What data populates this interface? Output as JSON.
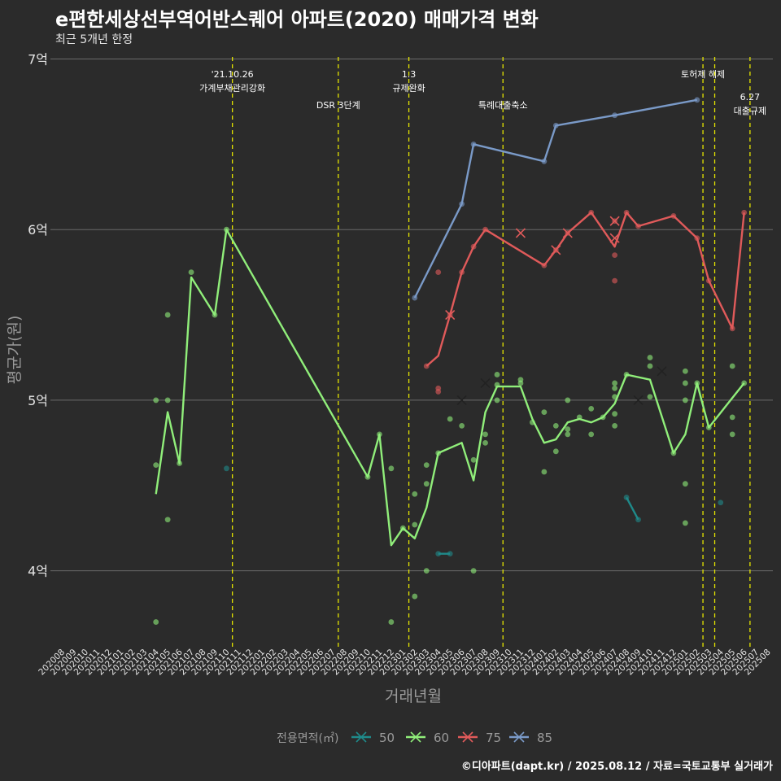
{
  "title": "e편한세상선부역어반스퀘어 아파트(2020) 매매가격 변화",
  "subtitle": "최근 5개년 한정",
  "caption": "©디아파트(dapt.kr) / 2025.08.12 / 자료=국토교통부 실거래가",
  "colors": {
    "background": "#2b2b2b",
    "grid": "#6b6b6b",
    "event_line": "#e5e500",
    "text": "#e6e6e6",
    "axis_title": "#9a9a9a",
    "s50": "#1f8a8a",
    "s60": "#90ee7a",
    "s75": "#e05a5a",
    "s85": "#7a9ac8"
  },
  "chart_data": {
    "type": "line",
    "xlabel": "거래년월",
    "ylabel": "평균가(원)",
    "ylim": [
      3.55,
      7.05
    ],
    "yticks": [
      {
        "v": 4,
        "label": "4억"
      },
      {
        "v": 5,
        "label": "5억"
      },
      {
        "v": 6,
        "label": "6억"
      },
      {
        "v": 7,
        "label": "7억"
      }
    ],
    "x_start_year": 2020,
    "x_start_month": 8,
    "x_count": 61,
    "legend_title": "전용면적(㎡)",
    "legend": [
      {
        "name": "50",
        "key": "s50"
      },
      {
        "name": "60",
        "key": "s60"
      },
      {
        "name": "75",
        "key": "s75"
      },
      {
        "name": "85",
        "key": "s85"
      }
    ],
    "events": [
      {
        "i": 14.5,
        "lines": [
          "'21.10.26",
          "가계부채관리강화"
        ],
        "row": 0
      },
      {
        "i": 23.5,
        "lines": [
          "DSR 3단계"
        ],
        "row": 1
      },
      {
        "i": 29.5,
        "lines": [
          "1.3",
          "규제완화"
        ],
        "row": 0
      },
      {
        "i": 37.5,
        "lines": [
          "특례대출축소"
        ],
        "row": 1
      },
      {
        "i": 54.5,
        "lines": [
          "토허제 해제"
        ],
        "row": 0
      },
      {
        "i": 55.5,
        "lines": [],
        "row": 0
      },
      {
        "i": 58.5,
        "lines": [
          "6.27",
          "대출규제"
        ],
        "row": 1
      }
    ],
    "series": [
      {
        "name": "50",
        "key": "s50",
        "line": [
          [
            32,
            4.1
          ],
          [
            33,
            4.1
          ],
          [
            48,
            4.43
          ],
          [
            49,
            4.3
          ]
        ],
        "points": [
          [
            14,
            4.6
          ],
          [
            32,
            4.1
          ],
          [
            33,
            4.1
          ],
          [
            48,
            4.43
          ],
          [
            49,
            4.3
          ],
          [
            56,
            4.4
          ]
        ],
        "crosses": []
      },
      {
        "name": "60",
        "key": "s60",
        "line": [
          [
            8,
            4.45
          ],
          [
            9,
            4.93
          ],
          [
            10,
            4.63
          ],
          [
            11,
            5.72
          ],
          [
            13,
            5.5
          ],
          [
            14,
            6.0
          ],
          [
            26,
            4.55
          ],
          [
            27,
            4.8
          ],
          [
            28,
            4.15
          ],
          [
            29,
            4.25
          ],
          [
            30,
            4.19
          ],
          [
            31,
            4.37
          ],
          [
            32,
            4.69
          ],
          [
            34,
            4.75
          ],
          [
            35,
            4.53
          ],
          [
            36,
            4.93
          ],
          [
            37,
            5.08
          ],
          [
            39,
            5.08
          ],
          [
            40,
            4.89
          ],
          [
            41,
            4.75
          ],
          [
            42,
            4.77
          ],
          [
            43,
            4.87
          ],
          [
            44,
            4.89
          ],
          [
            45,
            4.87
          ],
          [
            46,
            4.9
          ],
          [
            47,
            4.98
          ],
          [
            48,
            5.15
          ],
          [
            50,
            5.12
          ],
          [
            52,
            4.69
          ],
          [
            53,
            4.8
          ],
          [
            54,
            5.1
          ],
          [
            55,
            4.84
          ],
          [
            58,
            5.1
          ]
        ],
        "points": [
          [
            8,
            5.0
          ],
          [
            8,
            4.62
          ],
          [
            8,
            3.7
          ],
          [
            9,
            5.5
          ],
          [
            9,
            5.0
          ],
          [
            9,
            4.3
          ],
          [
            10,
            4.63
          ],
          [
            11,
            5.75
          ],
          [
            13,
            5.5
          ],
          [
            14,
            6.0
          ],
          [
            26,
            4.55
          ],
          [
            27,
            4.8
          ],
          [
            28,
            4.6
          ],
          [
            28,
            3.7
          ],
          [
            29,
            4.25
          ],
          [
            30,
            4.45
          ],
          [
            30,
            4.27
          ],
          [
            30,
            3.85
          ],
          [
            31,
            4.62
          ],
          [
            31,
            4.51
          ],
          [
            31,
            4.0
          ],
          [
            32,
            4.69
          ],
          [
            33,
            4.89
          ],
          [
            34,
            4.85
          ],
          [
            35,
            4.65
          ],
          [
            35,
            4.0
          ],
          [
            36,
            4.75
          ],
          [
            36,
            4.8
          ],
          [
            37,
            5.15
          ],
          [
            37,
            5.09
          ],
          [
            37,
            5.0
          ],
          [
            39,
            5.12
          ],
          [
            39,
            5.1
          ],
          [
            40,
            4.87
          ],
          [
            41,
            4.93
          ],
          [
            41,
            4.58
          ],
          [
            42,
            4.85
          ],
          [
            42,
            4.7
          ],
          [
            43,
            5.0
          ],
          [
            43,
            4.83
          ],
          [
            43,
            4.8
          ],
          [
            44,
            4.9
          ],
          [
            45,
            4.95
          ],
          [
            45,
            4.8
          ],
          [
            46,
            4.9
          ],
          [
            47,
            5.1
          ],
          [
            47,
            5.07
          ],
          [
            47,
            5.02
          ],
          [
            47,
            4.92
          ],
          [
            47,
            4.85
          ],
          [
            48,
            5.15
          ],
          [
            50,
            5.25
          ],
          [
            50,
            5.2
          ],
          [
            50,
            5.02
          ],
          [
            52,
            4.69
          ],
          [
            53,
            5.17
          ],
          [
            53,
            5.1
          ],
          [
            53,
            5.0
          ],
          [
            53,
            4.51
          ],
          [
            53,
            4.28
          ],
          [
            54,
            5.1
          ],
          [
            55,
            4.84
          ],
          [
            57,
            5.2
          ],
          [
            57,
            4.9
          ],
          [
            57,
            4.8
          ],
          [
            58,
            5.1
          ]
        ],
        "crosses": [
          [
            34,
            5.0
          ],
          [
            36,
            5.1
          ],
          [
            49,
            5.0
          ],
          [
            51,
            5.17
          ]
        ]
      },
      {
        "name": "75",
        "key": "s75",
        "line": [
          [
            31,
            5.2
          ],
          [
            32,
            5.26
          ],
          [
            33,
            5.5
          ],
          [
            34,
            5.75
          ],
          [
            35,
            5.9
          ],
          [
            36,
            6.0
          ],
          [
            41,
            5.79
          ],
          [
            42,
            5.88
          ],
          [
            43,
            5.98
          ],
          [
            45,
            6.1
          ],
          [
            47,
            5.9
          ],
          [
            48,
            6.1
          ],
          [
            49,
            6.02
          ],
          [
            52,
            6.08
          ],
          [
            54,
            5.95
          ],
          [
            55,
            5.7
          ],
          [
            57,
            5.42
          ],
          [
            58,
            6.1
          ]
        ],
        "points": [
          [
            31,
            5.2
          ],
          [
            32,
            5.75
          ],
          [
            32,
            5.07
          ],
          [
            32,
            5.05
          ],
          [
            33,
            5.5
          ],
          [
            34,
            5.75
          ],
          [
            35,
            5.9
          ],
          [
            36,
            6.0
          ],
          [
            41,
            5.79
          ],
          [
            42,
            5.88
          ],
          [
            43,
            5.98
          ],
          [
            45,
            6.1
          ],
          [
            47,
            6.05
          ],
          [
            47,
            5.85
          ],
          [
            47,
            5.7
          ],
          [
            48,
            6.1
          ],
          [
            49,
            6.02
          ],
          [
            52,
            6.08
          ],
          [
            54,
            5.95
          ],
          [
            55,
            5.7
          ],
          [
            57,
            5.42
          ],
          [
            58,
            6.1
          ]
        ],
        "crosses": [
          [
            33,
            5.5
          ],
          [
            39,
            5.98
          ],
          [
            42,
            5.88
          ],
          [
            43,
            5.98
          ],
          [
            47,
            6.05
          ],
          [
            47,
            5.95
          ]
        ]
      },
      {
        "name": "85",
        "key": "s85",
        "line": [
          [
            30,
            5.6
          ],
          [
            34,
            6.15
          ],
          [
            35,
            6.5
          ],
          [
            41,
            6.4
          ],
          [
            42,
            6.61
          ],
          [
            47,
            6.67
          ],
          [
            54,
            6.76
          ]
        ],
        "points": [
          [
            30,
            5.6
          ],
          [
            34,
            6.15
          ],
          [
            35,
            6.5
          ],
          [
            41,
            6.4
          ],
          [
            42,
            6.61
          ],
          [
            47,
            6.67
          ],
          [
            54,
            6.76
          ]
        ],
        "crosses": []
      }
    ]
  }
}
